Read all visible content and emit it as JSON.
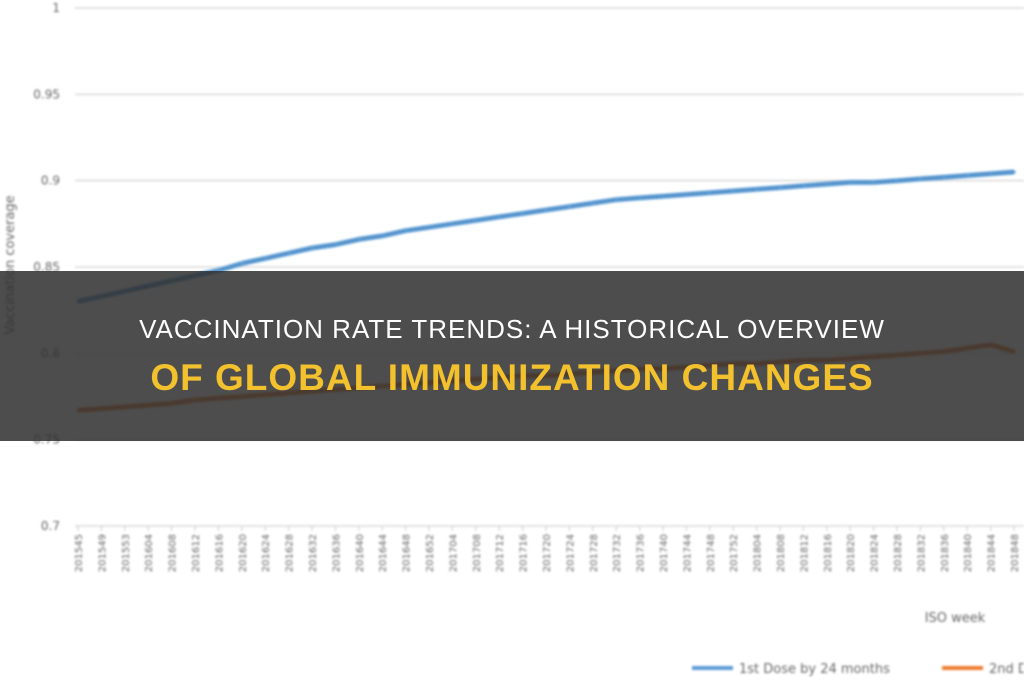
{
  "colors": {
    "series_blue": "#5b9bd5",
    "series_orange": "#ed7d31",
    "title_yellow": "#f3c12d",
    "overlay": "#303030"
  },
  "banner": {
    "line1": "Vaccination Rate Trends: A Historical Overview",
    "line2": "Of Global Immunization Changes"
  },
  "chart_data": {
    "type": "line",
    "title": "",
    "xlabel": "ISO week",
    "ylabel": "Vaccination coverage",
    "ylim": [
      0.7,
      1.0
    ],
    "yticks": [
      "0.7",
      "0.75",
      "0.8",
      "0.85",
      "0.9",
      "0.95",
      "1"
    ],
    "grid": true,
    "legend_position": "bottom",
    "x": [
      "201545",
      "201549",
      "201553",
      "201604",
      "201608",
      "201612",
      "201616",
      "201620",
      "201624",
      "201628",
      "201632",
      "201636",
      "201640",
      "201644",
      "201648",
      "201652",
      "201704",
      "201708",
      "201712",
      "201716",
      "201720",
      "201724",
      "201728",
      "201732",
      "201736",
      "201740",
      "201744",
      "201748",
      "201752",
      "201804",
      "201808",
      "201812",
      "201816",
      "201820",
      "201824",
      "201828",
      "201832",
      "201836",
      "201840",
      "201844",
      "201848"
    ],
    "series": [
      {
        "name": "1st Dose by 24 months",
        "color": "#5b9bd5",
        "values": [
          0.83,
          0.833,
          0.836,
          0.839,
          0.842,
          0.845,
          0.848,
          0.852,
          0.855,
          0.858,
          0.861,
          0.863,
          0.866,
          0.868,
          0.871,
          0.873,
          0.875,
          0.877,
          0.879,
          0.881,
          0.883,
          0.885,
          0.887,
          0.889,
          0.89,
          0.891,
          0.892,
          0.893,
          0.894,
          0.895,
          0.896,
          0.897,
          0.898,
          0.899,
          0.899,
          0.9,
          0.901,
          0.902,
          0.903,
          0.904,
          0.905
        ]
      },
      {
        "name": "2nd D",
        "color": "#ed7d31",
        "values": [
          0.767,
          0.768,
          0.769,
          0.77,
          0.771,
          0.773,
          0.774,
          0.775,
          0.776,
          0.777,
          0.778,
          0.779,
          0.78,
          0.781,
          0.782,
          0.783,
          0.784,
          0.785,
          0.786,
          0.787,
          0.787,
          0.788,
          0.789,
          0.79,
          0.791,
          0.791,
          0.792,
          0.793,
          0.794,
          0.794,
          0.795,
          0.796,
          0.796,
          0.797,
          0.798,
          0.799,
          0.8,
          0.801,
          0.803,
          0.805,
          0.801
        ]
      }
    ]
  }
}
